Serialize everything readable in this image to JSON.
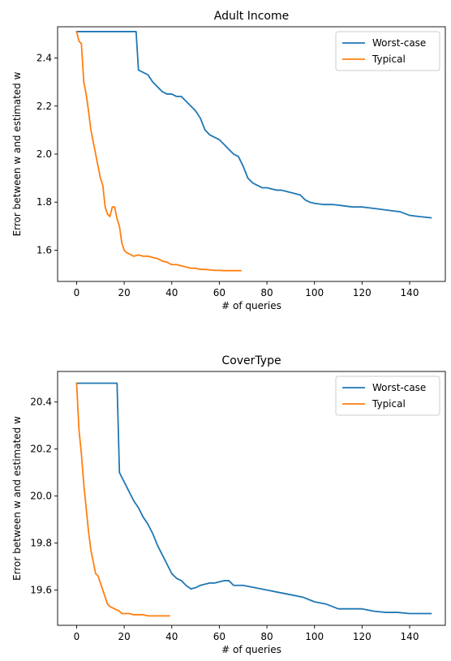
{
  "chart_data": [
    {
      "type": "line",
      "title": "Adult Income",
      "xlabel": "# of queries",
      "ylabel": "Error between w and estimated w",
      "xlim": [
        -8,
        155
      ],
      "ylim": [
        1.47,
        2.53
      ],
      "xticks": [
        0,
        20,
        40,
        60,
        80,
        100,
        120,
        140
      ],
      "yticks": [
        1.6,
        1.8,
        2.0,
        2.2,
        2.4
      ],
      "ytick_decimals": 1,
      "grid": false,
      "legend_position": "top-right",
      "series": [
        {
          "name": "Worst-case",
          "color": "#1f77b4",
          "x": [
            0,
            25,
            26,
            28,
            30,
            32,
            34,
            36,
            38,
            40,
            42,
            44,
            46,
            48,
            50,
            52,
            54,
            56,
            58,
            60,
            62,
            64,
            66,
            68,
            70,
            72,
            74,
            76,
            78,
            80,
            82,
            84,
            86,
            88,
            90,
            92,
            94,
            96,
            98,
            100,
            104,
            108,
            112,
            116,
            120,
            124,
            128,
            132,
            136,
            140,
            144,
            149
          ],
          "y": [
            2.51,
            2.51,
            2.35,
            2.34,
            2.33,
            2.3,
            2.28,
            2.26,
            2.25,
            2.25,
            2.24,
            2.24,
            2.22,
            2.2,
            2.18,
            2.15,
            2.1,
            2.08,
            2.07,
            2.06,
            2.04,
            2.02,
            2.0,
            1.99,
            1.95,
            1.9,
            1.88,
            1.87,
            1.86,
            1.86,
            1.855,
            1.85,
            1.85,
            1.845,
            1.84,
            1.835,
            1.83,
            1.81,
            1.8,
            1.795,
            1.79,
            1.79,
            1.785,
            1.78,
            1.78,
            1.775,
            1.77,
            1.765,
            1.76,
            1.745,
            1.74,
            1.735
          ]
        },
        {
          "name": "Typical",
          "color": "#ff7f0e",
          "x": [
            0,
            1,
            2,
            3,
            4,
            5,
            6,
            7,
            8,
            9,
            10,
            11,
            12,
            13,
            14,
            15,
            16,
            17,
            18,
            19,
            20,
            21,
            22,
            24,
            26,
            28,
            30,
            32,
            34,
            36,
            38,
            40,
            42,
            44,
            46,
            48,
            50,
            52,
            54,
            56,
            58,
            60,
            62,
            64,
            66,
            69
          ],
          "y": [
            2.51,
            2.47,
            2.46,
            2.3,
            2.25,
            2.18,
            2.1,
            2.05,
            2.0,
            1.95,
            1.9,
            1.87,
            1.78,
            1.75,
            1.74,
            1.78,
            1.78,
            1.73,
            1.7,
            1.63,
            1.6,
            1.59,
            1.585,
            1.575,
            1.58,
            1.575,
            1.575,
            1.57,
            1.565,
            1.555,
            1.55,
            1.54,
            1.54,
            1.535,
            1.53,
            1.525,
            1.525,
            1.52,
            1.52,
            1.518,
            1.516,
            1.516,
            1.515,
            1.515,
            1.515,
            1.515
          ]
        }
      ]
    },
    {
      "type": "line",
      "title": "CoverType",
      "xlabel": "# of queries",
      "ylabel": "Error between w and estimated w",
      "xlim": [
        -8,
        155
      ],
      "ylim": [
        19.45,
        20.53
      ],
      "xticks": [
        0,
        20,
        40,
        60,
        80,
        100,
        120,
        140
      ],
      "yticks": [
        19.6,
        19.8,
        20.0,
        20.2,
        20.4
      ],
      "ytick_decimals": 1,
      "grid": false,
      "legend_position": "top-right",
      "series": [
        {
          "name": "Worst-case",
          "color": "#1f77b4",
          "x": [
            0,
            17,
            18,
            20,
            22,
            24,
            26,
            28,
            30,
            32,
            34,
            36,
            38,
            40,
            42,
            44,
            46,
            48,
            50,
            52,
            54,
            56,
            58,
            60,
            62,
            64,
            66,
            68,
            70,
            75,
            80,
            85,
            90,
            95,
            100,
            105,
            110,
            115,
            120,
            125,
            130,
            135,
            140,
            145,
            149
          ],
          "y": [
            20.48,
            20.48,
            20.1,
            20.06,
            20.02,
            19.98,
            19.95,
            19.91,
            19.88,
            19.84,
            19.79,
            19.75,
            19.71,
            19.67,
            19.65,
            19.64,
            19.62,
            19.605,
            19.61,
            19.62,
            19.625,
            19.63,
            19.63,
            19.635,
            19.64,
            19.64,
            19.62,
            19.62,
            19.62,
            19.61,
            19.6,
            19.59,
            19.58,
            19.57,
            19.55,
            19.54,
            19.52,
            19.52,
            19.52,
            19.51,
            19.505,
            19.505,
            19.5,
            19.5,
            19.5
          ]
        },
        {
          "name": "Typical",
          "color": "#ff7f0e",
          "x": [
            0,
            1,
            2,
            3,
            4,
            5,
            6,
            7,
            8,
            9,
            10,
            11,
            12,
            13,
            14,
            15,
            16,
            17,
            18,
            19,
            20,
            22,
            24,
            26,
            28,
            30,
            32,
            34,
            36,
            39
          ],
          "y": [
            20.48,
            20.28,
            20.18,
            20.05,
            19.95,
            19.85,
            19.77,
            19.72,
            19.67,
            19.66,
            19.63,
            19.6,
            19.57,
            19.54,
            19.53,
            19.525,
            19.52,
            19.515,
            19.51,
            19.5,
            19.5,
            19.5,
            19.495,
            19.495,
            19.495,
            19.49,
            19.49,
            19.49,
            19.49,
            19.49
          ]
        }
      ]
    }
  ]
}
